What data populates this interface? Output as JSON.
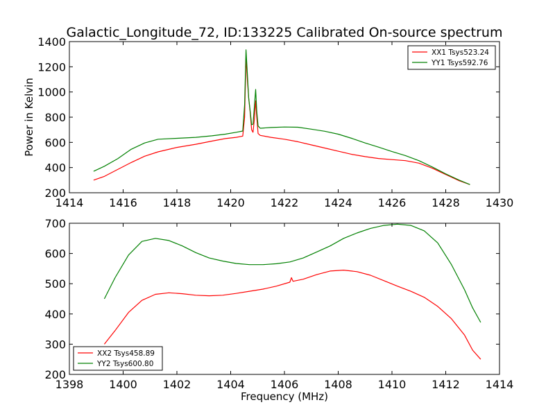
{
  "chart_data": [
    {
      "type": "line",
      "title": "Galactic_Longitude_72, ID:133225 Calibrated On-source spectrum",
      "xlabel": "",
      "ylabel": "Power in Kelvin",
      "xlim": [
        1414,
        1430
      ],
      "ylim": [
        200,
        1400
      ],
      "xticks": [
        1414,
        1416,
        1418,
        1420,
        1422,
        1424,
        1426,
        1428,
        1430
      ],
      "yticks": [
        200,
        400,
        600,
        800,
        1000,
        1200,
        1400
      ],
      "grid": false,
      "legend_position": "upper right",
      "series": [
        {
          "name": "XX1 Tsys523.24",
          "color": "#ff0000",
          "points": [
            [
              1414.9,
              300
            ],
            [
              1415.3,
              330
            ],
            [
              1415.8,
              385
            ],
            [
              1416.3,
              440
            ],
            [
              1416.8,
              490
            ],
            [
              1417.3,
              525
            ],
            [
              1418.0,
              560
            ],
            [
              1418.7,
              585
            ],
            [
              1419.3,
              610
            ],
            [
              1419.8,
              630
            ],
            [
              1420.2,
              640
            ],
            [
              1420.45,
              650
            ],
            [
              1420.52,
              800
            ],
            [
              1420.57,
              1280
            ],
            [
              1420.62,
              1100
            ],
            [
              1420.67,
              950
            ],
            [
              1420.72,
              850
            ],
            [
              1420.78,
              700
            ],
            [
              1420.83,
              680
            ],
            [
              1420.88,
              780
            ],
            [
              1420.93,
              930
            ],
            [
              1420.97,
              800
            ],
            [
              1421.02,
              670
            ],
            [
              1421.1,
              655
            ],
            [
              1421.5,
              640
            ],
            [
              1422.0,
              625
            ],
            [
              1422.5,
              605
            ],
            [
              1423.0,
              580
            ],
            [
              1423.5,
              555
            ],
            [
              1424.0,
              530
            ],
            [
              1424.5,
              505
            ],
            [
              1425.0,
              487
            ],
            [
              1425.5,
              472
            ],
            [
              1426.0,
              463
            ],
            [
              1426.5,
              455
            ],
            [
              1427.0,
              435
            ],
            [
              1427.5,
              395
            ],
            [
              1428.0,
              345
            ],
            [
              1428.5,
              295
            ],
            [
              1428.9,
              265
            ]
          ]
        },
        {
          "name": "YY1 Tsys592.76",
          "color": "#008000",
          "points": [
            [
              1414.9,
              370
            ],
            [
              1415.3,
              410
            ],
            [
              1415.8,
              470
            ],
            [
              1416.3,
              545
            ],
            [
              1416.8,
              595
            ],
            [
              1417.3,
              625
            ],
            [
              1418.0,
              632
            ],
            [
              1418.7,
              640
            ],
            [
              1419.3,
              652
            ],
            [
              1419.8,
              665
            ],
            [
              1420.2,
              680
            ],
            [
              1420.45,
              690
            ],
            [
              1420.52,
              900
            ],
            [
              1420.57,
              1335
            ],
            [
              1420.62,
              1150
            ],
            [
              1420.67,
              950
            ],
            [
              1420.72,
              860
            ],
            [
              1420.78,
              740
            ],
            [
              1420.83,
              745
            ],
            [
              1420.88,
              880
            ],
            [
              1420.93,
              1020
            ],
            [
              1420.97,
              850
            ],
            [
              1421.02,
              730
            ],
            [
              1421.1,
              712
            ],
            [
              1421.5,
              718
            ],
            [
              1422.0,
              722
            ],
            [
              1422.5,
              720
            ],
            [
              1423.0,
              705
            ],
            [
              1423.5,
              688
            ],
            [
              1424.0,
              665
            ],
            [
              1424.5,
              632
            ],
            [
              1425.0,
              595
            ],
            [
              1425.5,
              562
            ],
            [
              1426.0,
              527
            ],
            [
              1426.5,
              495
            ],
            [
              1427.0,
              455
            ],
            [
              1427.5,
              405
            ],
            [
              1428.0,
              350
            ],
            [
              1428.5,
              300
            ],
            [
              1428.9,
              265
            ]
          ]
        }
      ]
    },
    {
      "type": "line",
      "title": "",
      "xlabel": "Frequency (MHz)",
      "ylabel": "",
      "xlim": [
        1398,
        1414
      ],
      "ylim": [
        200,
        700
      ],
      "xticks": [
        1398,
        1400,
        1402,
        1404,
        1406,
        1408,
        1410,
        1412,
        1414
      ],
      "yticks": [
        200,
        300,
        400,
        500,
        600,
        700
      ],
      "grid": false,
      "legend_position": "lower left",
      "series": [
        {
          "name": "XX2 Tsys458.89",
          "color": "#ff0000",
          "points": [
            [
              1399.3,
              300
            ],
            [
              1399.7,
              345
            ],
            [
              1400.2,
              405
            ],
            [
              1400.7,
              445
            ],
            [
              1401.2,
              465
            ],
            [
              1401.7,
              470
            ],
            [
              1402.2,
              467
            ],
            [
              1402.7,
              462
            ],
            [
              1403.2,
              460
            ],
            [
              1403.7,
              462
            ],
            [
              1404.2,
              468
            ],
            [
              1404.7,
              475
            ],
            [
              1405.2,
              482
            ],
            [
              1405.7,
              492
            ],
            [
              1406.2,
              505
            ],
            [
              1406.26,
              520
            ],
            [
              1406.32,
              508
            ],
            [
              1406.7,
              515
            ],
            [
              1407.2,
              530
            ],
            [
              1407.7,
              542
            ],
            [
              1408.2,
              545
            ],
            [
              1408.7,
              540
            ],
            [
              1409.2,
              528
            ],
            [
              1409.7,
              510
            ],
            [
              1410.2,
              492
            ],
            [
              1410.7,
              475
            ],
            [
              1411.2,
              455
            ],
            [
              1411.7,
              425
            ],
            [
              1412.2,
              385
            ],
            [
              1412.7,
              330
            ],
            [
              1413.0,
              280
            ],
            [
              1413.3,
              250
            ]
          ]
        },
        {
          "name": "YY2 Tsys600.80",
          "color": "#008000",
          "points": [
            [
              1399.3,
              450
            ],
            [
              1399.7,
              520
            ],
            [
              1400.2,
              595
            ],
            [
              1400.7,
              640
            ],
            [
              1401.2,
              650
            ],
            [
              1401.7,
              643
            ],
            [
              1402.2,
              625
            ],
            [
              1402.7,
              603
            ],
            [
              1403.2,
              585
            ],
            [
              1403.7,
              575
            ],
            [
              1404.2,
              567
            ],
            [
              1404.7,
              563
            ],
            [
              1405.2,
              563
            ],
            [
              1405.7,
              566
            ],
            [
              1406.2,
              572
            ],
            [
              1406.7,
              585
            ],
            [
              1407.2,
              605
            ],
            [
              1407.7,
              625
            ],
            [
              1408.2,
              650
            ],
            [
              1408.7,
              668
            ],
            [
              1409.2,
              683
            ],
            [
              1409.7,
              693
            ],
            [
              1410.2,
              697
            ],
            [
              1410.7,
              693
            ],
            [
              1411.2,
              675
            ],
            [
              1411.7,
              635
            ],
            [
              1412.2,
              565
            ],
            [
              1412.7,
              480
            ],
            [
              1413.0,
              420
            ],
            [
              1413.3,
              372
            ]
          ]
        }
      ]
    }
  ]
}
